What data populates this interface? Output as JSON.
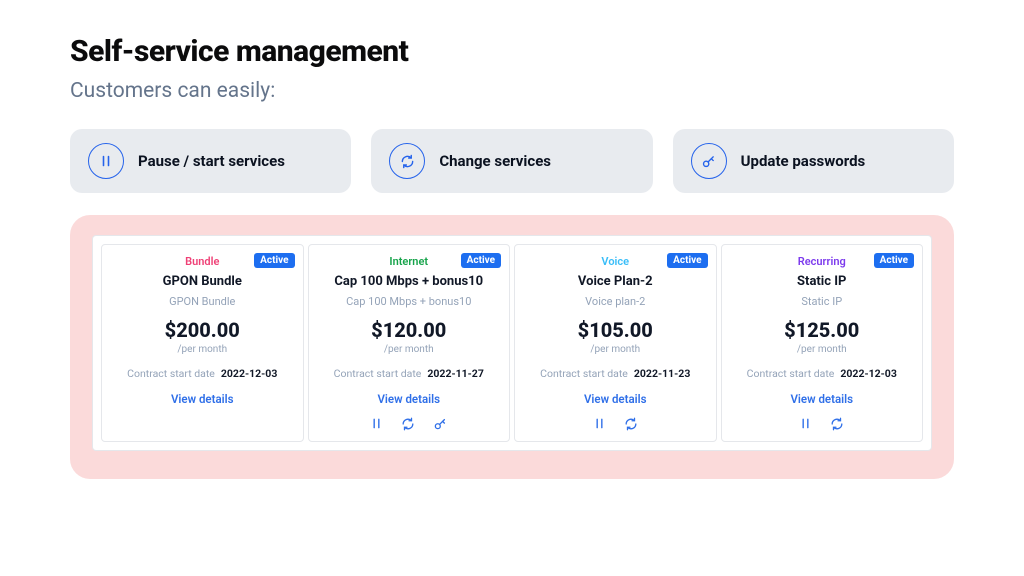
{
  "header": {
    "title": "Self-service management",
    "subtitle": "Customers can easily:"
  },
  "features": [
    {
      "label": "Pause / start services"
    },
    {
      "label": "Change services"
    },
    {
      "label": "Update passwords"
    }
  ],
  "colors": {
    "accent": "#1d6ef0",
    "feature_bg": "#e8ebef",
    "panel_bg": "#fbdada",
    "card_border": "#e5e7eb",
    "muted": "#94a3b8",
    "cat_bundle": "#ef4076",
    "cat_internet": "#16a34a",
    "cat_voice": "#38bdf8",
    "cat_recurring": "#7c3aed"
  },
  "labels": {
    "status_active": "Active",
    "per_month": "/per month",
    "contract_start": "Contract start date",
    "view_details": "View details"
  },
  "services": [
    {
      "category": "Bundle",
      "category_class": "cat-bundle",
      "name": "GPON Bundle",
      "subtitle": "GPON Bundle",
      "price": "$200.00",
      "start_date": "2022-12-03",
      "actions": []
    },
    {
      "category": "Internet",
      "category_class": "cat-internet",
      "name": "Cap 100 Mbps + bonus10",
      "subtitle": "Cap 100 Mbps + bonus10",
      "price": "$120.00",
      "start_date": "2022-11-27",
      "actions": [
        "pause",
        "change",
        "password"
      ]
    },
    {
      "category": "Voice",
      "category_class": "cat-voice",
      "name": "Voice Plan-2",
      "subtitle": "Voice plan-2",
      "price": "$105.00",
      "start_date": "2022-11-23",
      "actions": [
        "pause",
        "change"
      ]
    },
    {
      "category": "Recurring",
      "category_class": "cat-recurring",
      "name": "Static IP",
      "subtitle": "Static IP",
      "price": "$125.00",
      "start_date": "2022-12-03",
      "actions": [
        "pause",
        "change"
      ]
    }
  ]
}
